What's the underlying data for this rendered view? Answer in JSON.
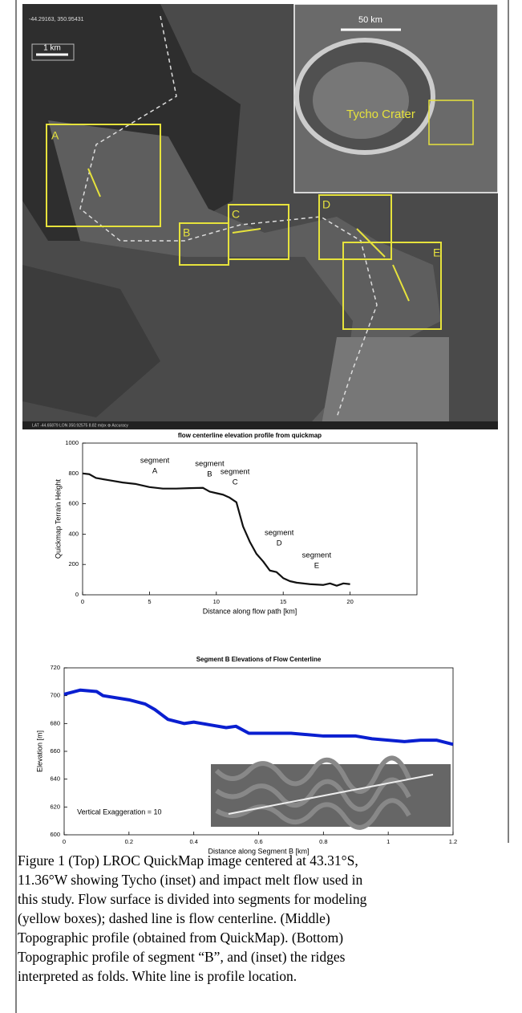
{
  "figure_image": {
    "coordinates": "-44.29163, 350.95431",
    "scale_bar": "1 km",
    "inset_scale_bar": "50 km",
    "inset_label": "Tycho Crater",
    "status_bar": "LAT -44.65879   LON 350.92575   8.82 m/px   ⊕ Accuracy",
    "boxes": [
      "A",
      "B",
      "C",
      "D",
      "E"
    ]
  },
  "chart_data": [
    {
      "type": "line",
      "title": "flow centerline elevation profile from quickmap",
      "x_label": "Distance along flow path [km]",
      "y_label": "Quickmap Terrain Height",
      "x": [
        0,
        0.5,
        1,
        2,
        3,
        4,
        5,
        6,
        7,
        8,
        9,
        9.5,
        10,
        10.5,
        11,
        11.5,
        12,
        12.5,
        13,
        13.5,
        14,
        14.5,
        15,
        15.5,
        16,
        17,
        18,
        18.5,
        19,
        19.5,
        20
      ],
      "values": [
        800,
        795,
        770,
        755,
        740,
        730,
        710,
        700,
        700,
        703,
        705,
        680,
        670,
        660,
        640,
        610,
        450,
        350,
        270,
        220,
        160,
        150,
        110,
        90,
        80,
        70,
        65,
        75,
        60,
        75,
        70
      ],
      "color": "#111111",
      "xlim": [
        0,
        25
      ],
      "xticks": [
        0,
        5,
        10,
        15,
        20
      ],
      "ylim": [
        0,
        1000
      ],
      "yticks": [
        0,
        200,
        400,
        600,
        800,
        1000
      ],
      "annotations": [
        {
          "lines": [
            "segment",
            "A"
          ],
          "x": 5.4,
          "y": 884
        },
        {
          "lines": [
            "segment",
            "B"
          ],
          "x": 9.5,
          "y": 862
        },
        {
          "lines": [
            "segment",
            "C"
          ],
          "x": 11.4,
          "y": 810
        },
        {
          "lines": [
            "segment",
            "D"
          ],
          "x": 14.7,
          "y": 407
        },
        {
          "lines": [
            "segment",
            "E"
          ],
          "x": 17.5,
          "y": 259
        }
      ]
    },
    {
      "type": "line",
      "title": "Segment B Elevations of Flow Centerline",
      "x_label": "Distance along Segment B [km]",
      "y_label": "Elevation [m]",
      "x": [
        0,
        0.05,
        0.1,
        0.12,
        0.2,
        0.25,
        0.28,
        0.32,
        0.37,
        0.4,
        0.45,
        0.5,
        0.53,
        0.57,
        0.7,
        0.8,
        0.9,
        0.95,
        1.05,
        1.1,
        1.15,
        1.2
      ],
      "values": [
        701,
        704,
        703,
        700,
        697,
        694,
        690,
        683,
        680,
        681,
        679,
        677,
        678,
        673,
        673,
        671,
        671,
        669,
        667,
        668,
        668,
        665
      ],
      "color": "#0a1fd0",
      "xlim": [
        0,
        1.2
      ],
      "xticks": [
        0,
        0.2,
        0.4,
        0.6,
        0.8,
        1,
        1.2
      ],
      "ylim": [
        600,
        720
      ],
      "yticks": [
        600,
        620,
        640,
        660,
        680,
        700,
        720
      ],
      "annotations": [
        {
          "lines": [
            "Vertical Exaggeration = 10"
          ],
          "x": 0.04,
          "y": 616
        }
      ]
    }
  ],
  "caption": [
    "Figure 1 (Top) LROC QuickMap image centered at 43.31°S,",
    "11.36°W showing Tycho (inset) and impact melt flow used in",
    "this study. Flow surface is divided into segments for modeling",
    "(yellow boxes); dashed line is flow centerline. (Middle)",
    "Topographic profile (obtained from QuickMap). (Bottom)",
    "Topographic profile of segment “B”, and (inset) the ridges",
    "interpreted as folds. White line is profile location."
  ]
}
